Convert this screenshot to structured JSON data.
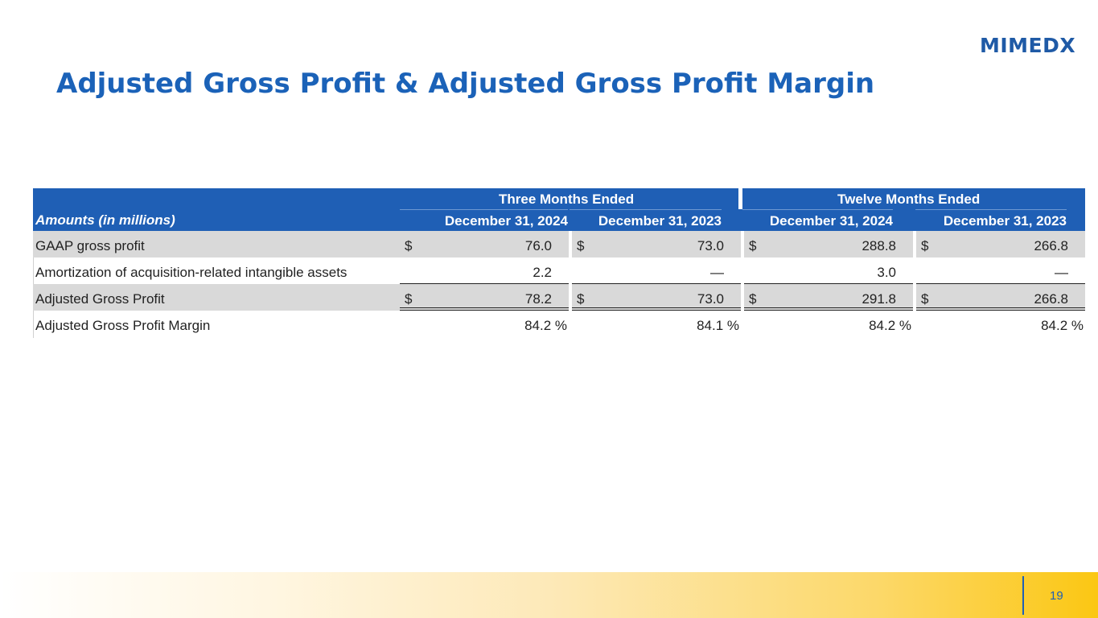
{
  "brand": {
    "logo_text": "MIMEDX"
  },
  "title": "Adjusted Gross Profit & Adjusted Gross Profit Margin",
  "table": {
    "group_headers": [
      "Three Months Ended",
      "Twelve Months Ended"
    ],
    "label_header": "Amounts (in millions)",
    "column_headers": [
      "December 31, 2024",
      "December 31, 2023",
      "December 31, 2024",
      "December 31, 2023"
    ],
    "rows": [
      {
        "label": "GAAP gross profit",
        "cells": [
          {
            "currency": "$",
            "value": "76.0"
          },
          {
            "currency": "$",
            "value": "73.0"
          },
          {
            "currency": "$",
            "value": "288.8"
          },
          {
            "currency": "$",
            "value": "266.8"
          }
        ]
      },
      {
        "label": "Amortization of acquisition-related intangible assets",
        "cells": [
          {
            "currency": "",
            "value": "2.2"
          },
          {
            "currency": "",
            "value": "—"
          },
          {
            "currency": "",
            "value": "3.0"
          },
          {
            "currency": "",
            "value": "—"
          }
        ]
      },
      {
        "label": "Adjusted Gross Profit",
        "cells": [
          {
            "currency": "$",
            "value": "78.2"
          },
          {
            "currency": "$",
            "value": "73.0"
          },
          {
            "currency": "$",
            "value": "291.8"
          },
          {
            "currency": "$",
            "value": "266.8"
          }
        ]
      },
      {
        "label": "Adjusted Gross Profit Margin",
        "cells": [
          {
            "value": "84.2 %"
          },
          {
            "value": "84.1 %"
          },
          {
            "value": "84.2 %"
          },
          {
            "value": "84.2 %"
          }
        ]
      }
    ]
  },
  "footer": {
    "page_number": "19"
  },
  "colors": {
    "brand_blue": "#1f5fb5",
    "accent_yellow": "#fbc713",
    "row_shade": "#d9d9d9"
  }
}
